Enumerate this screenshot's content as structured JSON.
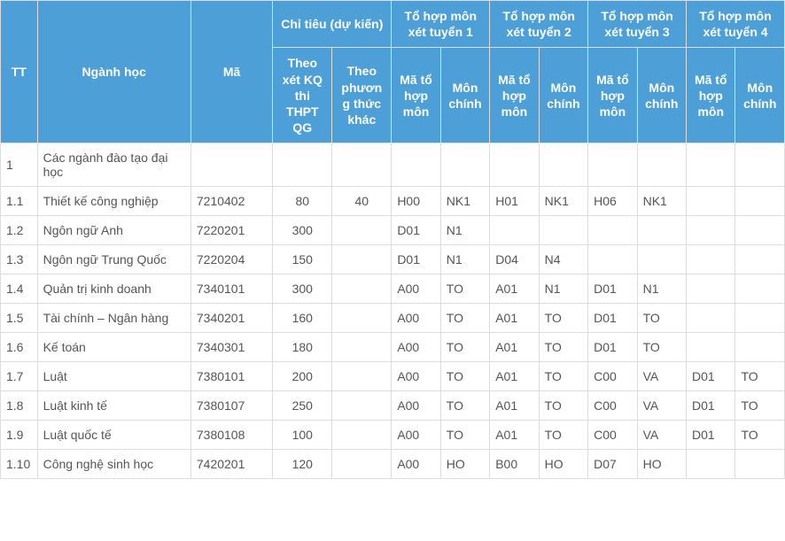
{
  "colors": {
    "header_bg": "#4d9fd8",
    "header_text": "#ffffff",
    "border": "#dddddd",
    "cell_text": "#555555",
    "cell_bg": "#ffffff"
  },
  "header": {
    "tt": "TT",
    "nganh": "Ngành học",
    "ma": "Mã",
    "chitieu_group": "Chỉ tiêu (dự kiến)",
    "chitieu_thpt": "Theo xét KQ thi THPT QG",
    "chitieu_khac": "Theo phương thức khác",
    "tohop1": "Tổ hợp môn xét tuyển 1",
    "tohop2": "Tổ hợp môn xét tuyển 2",
    "tohop3": "Tổ hợp môn xét tuyển 3",
    "tohop4": "Tổ hợp môn xét tuyển 4",
    "ma_tohop": "Mã tổ hợp môn",
    "mon_chinh": "Môn chính"
  },
  "rows": [
    {
      "tt": "1",
      "nganh": "Các ngành đào tạo đại học",
      "ma": "",
      "ct1": "",
      "ct2": "",
      "m1": "",
      "c1": "",
      "m2": "",
      "c2": "",
      "m3": "",
      "c3": "",
      "m4": "",
      "c4": ""
    },
    {
      "tt": "1.1",
      "nganh": "Thiết kế công nghiệp",
      "ma": "7210402",
      "ct1": "80",
      "ct2": "40",
      "m1": "H00",
      "c1": "NK1",
      "m2": "H01",
      "c2": "NK1",
      "m3": "H06",
      "c3": "NK1",
      "m4": "",
      "c4": ""
    },
    {
      "tt": "1.2",
      "nganh": "Ngôn ngữ Anh",
      "ma": "7220201",
      "ct1": "300",
      "ct2": "",
      "m1": "D01",
      "c1": "N1",
      "m2": "",
      "c2": "",
      "m3": "",
      "c3": "",
      "m4": "",
      "c4": ""
    },
    {
      "tt": "1.3",
      "nganh": "Ngôn ngữ Trung Quốc",
      "ma": "7220204",
      "ct1": "150",
      "ct2": "",
      "m1": "D01",
      "c1": "N1",
      "m2": "D04",
      "c2": "N4",
      "m3": "",
      "c3": "",
      "m4": "",
      "c4": ""
    },
    {
      "tt": "1.4",
      "nganh": "Quản trị kinh doanh",
      "ma": "7340101",
      "ct1": "300",
      "ct2": "",
      "m1": "A00",
      "c1": "TO",
      "m2": "A01",
      "c2": "N1",
      "m3": "D01",
      "c3": "N1",
      "m4": "",
      "c4": ""
    },
    {
      "tt": "1.5",
      "nganh": "Tài chính – Ngân hàng",
      "ma": "7340201",
      "ct1": "160",
      "ct2": "",
      "m1": "A00",
      "c1": "TO",
      "m2": "A01",
      "c2": "TO",
      "m3": "D01",
      "c3": "TO",
      "m4": "",
      "c4": ""
    },
    {
      "tt": "1.6",
      "nganh": "Kế toán",
      "ma": "7340301",
      "ct1": "180",
      "ct2": "",
      "m1": "A00",
      "c1": "TO",
      "m2": "A01",
      "c2": "TO",
      "m3": "D01",
      "c3": "TO",
      "m4": "",
      "c4": ""
    },
    {
      "tt": "1.7",
      "nganh": "Luật",
      "ma": "7380101",
      "ct1": "200",
      "ct2": "",
      "m1": "A00",
      "c1": "TO",
      "m2": "A01",
      "c2": "TO",
      "m3": "C00",
      "c3": "VA",
      "m4": "D01",
      "c4": "TO"
    },
    {
      "tt": "1.8",
      "nganh": "Luật kinh tế",
      "ma": "7380107",
      "ct1": "250",
      "ct2": "",
      "m1": "A00",
      "c1": "TO",
      "m2": "A01",
      "c2": "TO",
      "m3": "C00",
      "c3": "VA",
      "m4": "D01",
      "c4": "TO"
    },
    {
      "tt": "1.9",
      "nganh": "Luật quốc tế",
      "ma": "7380108",
      "ct1": "100",
      "ct2": "",
      "m1": "A00",
      "c1": "TO",
      "m2": "A01",
      "c2": "TO",
      "m3": "C00",
      "c3": "VA",
      "m4": "D01",
      "c4": "TO"
    },
    {
      "tt": "1.10",
      "nganh": "Công nghệ sinh học",
      "ma": "7420201",
      "ct1": "120",
      "ct2": "",
      "m1": "A00",
      "c1": "HO",
      "m2": "B00",
      "c2": "HO",
      "m3": "D07",
      "c3": "HO",
      "m4": "",
      "c4": ""
    }
  ]
}
